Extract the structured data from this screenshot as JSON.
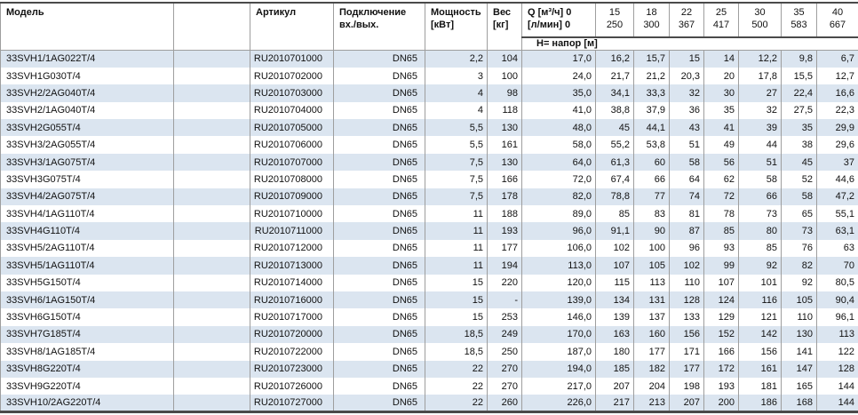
{
  "colors": {
    "stripe": "#dbe5f0",
    "border": "#9e9e9e",
    "dark": "#4a4a4a"
  },
  "header": {
    "col_model": "Модель",
    "col_article": "Артикул",
    "col_connection_line1": "Подключение",
    "col_connection_line2": "вх./вых.",
    "col_power_line1": "Мощность",
    "col_power_line2": "[кВт]",
    "col_weight_line1": "Вес",
    "col_weight_line2": "[кг]",
    "col_q_line1": "Q [м³/ч] 0",
    "col_q_line2": "[л/мин] 0",
    "head_row_label": "H= напор [м]",
    "flow_columns": [
      {
        "m3h": "15",
        "lmin": "250"
      },
      {
        "m3h": "18",
        "lmin": "300"
      },
      {
        "m3h": "22",
        "lmin": "367"
      },
      {
        "m3h": "25",
        "lmin": "417"
      },
      {
        "m3h": "30",
        "lmin": "500"
      },
      {
        "m3h": "35",
        "lmin": "583"
      },
      {
        "m3h": "40",
        "lmin": "667"
      }
    ]
  },
  "rows": [
    {
      "model": "33SVH1/1AG022T/4",
      "article": "RU2010701000",
      "connection": "DN65",
      "power": "2,2",
      "weight": "104",
      "heads": [
        "17,0",
        "16,2",
        "15,7",
        "15",
        "14",
        "12,2",
        "9,8",
        "6,7"
      ]
    },
    {
      "model": "33SVH1G030T/4",
      "article": "RU2010702000",
      "connection": "DN65",
      "power": "3",
      "weight": "100",
      "heads": [
        "24,0",
        "21,7",
        "21,2",
        "20,3",
        "20",
        "17,8",
        "15,5",
        "12,7"
      ]
    },
    {
      "model": "33SVH2/2AG040T/4",
      "article": "RU2010703000",
      "connection": "DN65",
      "power": "4",
      "weight": "98",
      "heads": [
        "35,0",
        "34,1",
        "33,3",
        "32",
        "30",
        "27",
        "22,4",
        "16,6"
      ]
    },
    {
      "model": "33SVH2/1AG040T/4",
      "article": "RU2010704000",
      "connection": "DN65",
      "power": "4",
      "weight": "118",
      "heads": [
        "41,0",
        "38,8",
        "37,9",
        "36",
        "35",
        "32",
        "27,5",
        "22,3"
      ]
    },
    {
      "model": "33SVH2G055T/4",
      "article": "RU2010705000",
      "connection": "DN65",
      "power": "5,5",
      "weight": "130",
      "heads": [
        "48,0",
        "45",
        "44,1",
        "43",
        "41",
        "39",
        "35",
        "29,9"
      ]
    },
    {
      "model": "33SVH3/2AG055T/4",
      "article": "RU2010706000",
      "connection": "DN65",
      "power": "5,5",
      "weight": "161",
      "heads": [
        "58,0",
        "55,2",
        "53,8",
        "51",
        "49",
        "44",
        "38",
        "29,6"
      ]
    },
    {
      "model": "33SVH3/1AG075T/4",
      "article": "RU2010707000",
      "connection": "DN65",
      "power": "7,5",
      "weight": "130",
      "heads": [
        "64,0",
        "61,3",
        "60",
        "58",
        "56",
        "51",
        "45",
        "37"
      ]
    },
    {
      "model": "33SVH3G075T/4",
      "article": "RU2010708000",
      "connection": "DN65",
      "power": "7,5",
      "weight": "166",
      "heads": [
        "72,0",
        "67,4",
        "66",
        "64",
        "62",
        "58",
        "52",
        "44,6"
      ]
    },
    {
      "model": "33SVH4/2AG075T/4",
      "article": "RU2010709000",
      "connection": "DN65",
      "power": "7,5",
      "weight": "178",
      "heads": [
        "82,0",
        "78,8",
        "77",
        "74",
        "72",
        "66",
        "58",
        "47,2"
      ]
    },
    {
      "model": "33SVH4/1AG110T/4",
      "article": "RU2010710000",
      "connection": "DN65",
      "power": "11",
      "weight": "188",
      "heads": [
        "89,0",
        "85",
        "83",
        "81",
        "78",
        "73",
        "65",
        "55,1"
      ]
    },
    {
      "model": "33SVH4G110T/4",
      "article": "RU2010711000",
      "connection": "DN65",
      "power": "11",
      "weight": "193",
      "heads": [
        "96,0",
        "91,1",
        "90",
        "87",
        "85",
        "80",
        "73",
        "63,1"
      ]
    },
    {
      "model": "33SVH5/2AG110T/4",
      "article": "RU2010712000",
      "connection": "DN65",
      "power": "11",
      "weight": "177",
      "heads": [
        "106,0",
        "102",
        "100",
        "96",
        "93",
        "85",
        "76",
        "63"
      ]
    },
    {
      "model": "33SVH5/1AG110T/4",
      "article": "RU2010713000",
      "connection": "DN65",
      "power": "11",
      "weight": "194",
      "heads": [
        "113,0",
        "107",
        "105",
        "102",
        "99",
        "92",
        "82",
        "70"
      ]
    },
    {
      "model": "33SVH5G150T/4",
      "article": "RU2010714000",
      "connection": "DN65",
      "power": "15",
      "weight": "220",
      "heads": [
        "120,0",
        "115",
        "113",
        "110",
        "107",
        "101",
        "92",
        "80,5"
      ]
    },
    {
      "model": "33SVH6/1AG150T/4",
      "article": "RU2010716000",
      "connection": "DN65",
      "power": "15",
      "weight": "-",
      "heads": [
        "139,0",
        "134",
        "131",
        "128",
        "124",
        "116",
        "105",
        "90,4"
      ]
    },
    {
      "model": "33SVH6G150T/4",
      "article": "RU2010717000",
      "connection": "DN65",
      "power": "15",
      "weight": "253",
      "heads": [
        "146,0",
        "139",
        "137",
        "133",
        "129",
        "121",
        "110",
        "96,1"
      ]
    },
    {
      "model": "33SVH7G185T/4",
      "article": "RU2010720000",
      "connection": "DN65",
      "power": "18,5",
      "weight": "249",
      "heads": [
        "170,0",
        "163",
        "160",
        "156",
        "152",
        "142",
        "130",
        "113"
      ]
    },
    {
      "model": "33SVH8/1AG185T/4",
      "article": "RU2010722000",
      "connection": "DN65",
      "power": "18,5",
      "weight": "250",
      "heads": [
        "187,0",
        "180",
        "177",
        "171",
        "166",
        "156",
        "141",
        "122"
      ]
    },
    {
      "model": "33SVH8G220T/4",
      "article": "RU2010723000",
      "connection": "DN65",
      "power": "22",
      "weight": "270",
      "heads": [
        "194,0",
        "185",
        "182",
        "177",
        "172",
        "161",
        "147",
        "128"
      ]
    },
    {
      "model": "33SVH9G220T/4",
      "article": "RU2010726000",
      "connection": "DN65",
      "power": "22",
      "weight": "270",
      "heads": [
        "217,0",
        "207",
        "204",
        "198",
        "193",
        "181",
        "165",
        "144"
      ]
    },
    {
      "model": "33SVH10/2AG220T/4",
      "article": "RU2010727000",
      "connection": "DN65",
      "power": "22",
      "weight": "260",
      "heads": [
        "226,0",
        "217",
        "213",
        "207",
        "200",
        "186",
        "168",
        "144"
      ]
    }
  ]
}
